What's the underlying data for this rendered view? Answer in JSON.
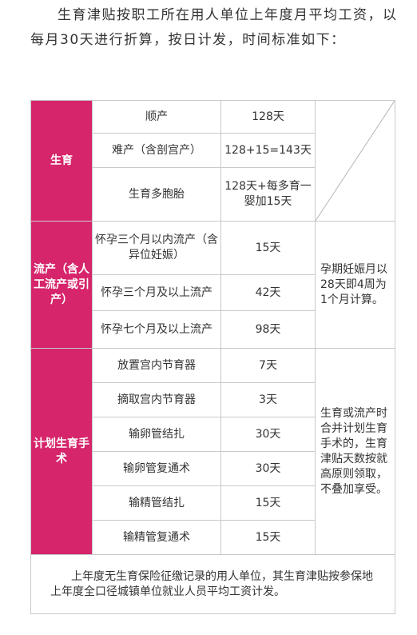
{
  "intro_text": "生育津贴按职工所在用人单位上年度月平均工资，以每月30天进行折算，按日计发，时间标准如下：",
  "table": {
    "childbirth": {
      "category": "生育",
      "rows": [
        {
          "item": "顺产",
          "days": "128天"
        },
        {
          "item": "难产（含剖宫产）",
          "days": "128+15=143天"
        },
        {
          "item": "生育多胞胎",
          "days": "128天+每多育一婴加15天"
        }
      ]
    },
    "miscarriage": {
      "category": "流产（含人工流产或引产）",
      "note": "孕期妊娠月以28天即4周为1个月计算。",
      "rows": [
        {
          "item": "怀孕三个月以内流产（含异位妊娠）",
          "days": "15天"
        },
        {
          "item": "怀孕三个月及以上流产",
          "days": "42天"
        },
        {
          "item": "怀孕七个月及以上流产",
          "days": "98天"
        }
      ]
    },
    "family_planning": {
      "category": "计划生育手术",
      "note": "生育或流产时合并计划生育手术的，生育津贴天数按就高原则领取，不叠加享受。",
      "rows": [
        {
          "item": "放置宫内节育器",
          "days": "7天"
        },
        {
          "item": "摘取宫内节育器",
          "days": "3天"
        },
        {
          "item": "输卵管结扎",
          "days": "30天"
        },
        {
          "item": "输卵管复通术",
          "days": "30天"
        },
        {
          "item": "输精管结扎",
          "days": "15天"
        },
        {
          "item": "输精管复通术",
          "days": "15天"
        }
      ]
    },
    "footer": "上年度无生育保险征缴记录的用人单位，其生育津贴按参保地上年度全口径城镇单位就业人员平均工资计发。"
  },
  "colors": {
    "category_bg": "#d6256b",
    "border": "#c9c9c9",
    "text": "#333333"
  }
}
